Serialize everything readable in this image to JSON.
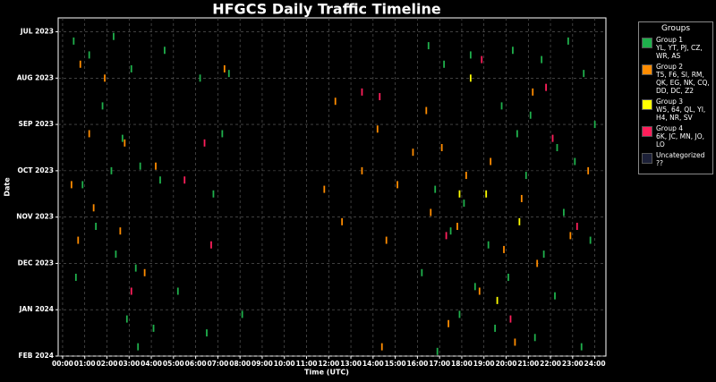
{
  "chart_data": {
    "type": "timeline",
    "title": "HFGCS Daily Traffic Timeline",
    "x_label": "Time (UTC)",
    "y_label": "Date",
    "xlim": [
      -0.2,
      24.5
    ],
    "xticks": [
      {
        "value": 0,
        "label": "00:00"
      },
      {
        "value": 1,
        "label": "01:00"
      },
      {
        "value": 2,
        "label": "02:00"
      },
      {
        "value": 3,
        "label": "03:00"
      },
      {
        "value": 4,
        "label": "04:00"
      },
      {
        "value": 5,
        "label": "05:00"
      },
      {
        "value": 6,
        "label": "06:00"
      },
      {
        "value": 7,
        "label": "07:00"
      },
      {
        "value": 8,
        "label": "08:00"
      },
      {
        "value": 9,
        "label": "09:00"
      },
      {
        "value": 10,
        "label": "10:00"
      },
      {
        "value": 11,
        "label": "11:00"
      },
      {
        "value": 12,
        "label": "12:00"
      },
      {
        "value": 13,
        "label": "13:00"
      },
      {
        "value": 14,
        "label": "14:00"
      },
      {
        "value": 15,
        "label": "15:00"
      },
      {
        "value": 16,
        "label": "16:00"
      },
      {
        "value": 17,
        "label": "17:00"
      },
      {
        "value": 18,
        "label": "18:00"
      },
      {
        "value": 19,
        "label": "19:00"
      },
      {
        "value": 20,
        "label": "20:00"
      },
      {
        "value": 21,
        "label": "21:00"
      },
      {
        "value": 22,
        "label": "22:00"
      },
      {
        "value": 23,
        "label": "23:00"
      },
      {
        "value": 24,
        "label": "24:00"
      }
    ],
    "ylim": [
      -0.3,
      7
    ],
    "yticks": [
      {
        "value": 0,
        "label": "JUL 2023"
      },
      {
        "value": 1,
        "label": "AUG 2023"
      },
      {
        "value": 2,
        "label": "SEP 2023"
      },
      {
        "value": 3,
        "label": "OCT 2023"
      },
      {
        "value": 4,
        "label": "NOV 2023"
      },
      {
        "value": 5,
        "label": "DEC 2023"
      },
      {
        "value": 6,
        "label": "JAN 2024"
      },
      {
        "value": 7,
        "label": "FEB 2024"
      }
    ],
    "y_reversed": true,
    "grid": true,
    "legend_title": "Groups",
    "legend_position": "outside-right",
    "series": [
      {
        "name": "Group 1",
        "members": "YL, YT, PJ, CZ, WR, AS",
        "color": "#1fb04c",
        "x": [
          0.5,
          1.2,
          2.3,
          3.1,
          4.6,
          6.2,
          7.5,
          1.8,
          2.7,
          3.5,
          0.9,
          2.2,
          4.4,
          6.8,
          7.2,
          1.5,
          2.4,
          0.6,
          3.3,
          5.2,
          2.9,
          4.1,
          6.5,
          3.4,
          8.1,
          16.5,
          17.2,
          18.4,
          20.3,
          21.6,
          22.8,
          23.5,
          19.8,
          21.1,
          20.5,
          22.3,
          23.1,
          20.9,
          16.8,
          18.1,
          22.6,
          17.5,
          19.2,
          21.7,
          23.8,
          16.2,
          18.6,
          20.1,
          22.2,
          17.9,
          19.5,
          21.3,
          23.4,
          16.9,
          24.0
        ],
        "y": [
          0.2,
          0.5,
          0.1,
          0.8,
          0.4,
          1.0,
          0.9,
          1.6,
          2.3,
          2.9,
          3.3,
          3.0,
          3.2,
          3.5,
          2.2,
          4.2,
          4.8,
          5.3,
          5.1,
          5.6,
          6.2,
          6.4,
          6.5,
          6.8,
          6.1,
          0.3,
          0.7,
          0.5,
          0.4,
          0.6,
          0.2,
          0.9,
          1.6,
          1.8,
          2.2,
          2.5,
          2.8,
          3.1,
          3.4,
          3.7,
          3.9,
          4.3,
          4.6,
          4.8,
          4.5,
          5.2,
          5.5,
          5.3,
          5.7,
          6.1,
          6.4,
          6.6,
          6.8,
          6.9,
          2.0
        ]
      },
      {
        "name": "Group 2",
        "members": "T5, F6, SI, RM, QK, EG, NK, CQ, DD, DC, Z2",
        "color": "#ff8c00",
        "x": [
          0.8,
          1.9,
          7.3,
          1.2,
          2.8,
          0.4,
          1.4,
          4.2,
          0.7,
          2.6,
          3.7,
          12.3,
          14.2,
          13.5,
          15.1,
          11.8,
          12.6,
          14.6,
          16.4,
          17.1,
          18.2,
          19.3,
          20.7,
          16.6,
          17.8,
          19.9,
          21.4,
          22.9,
          18.8,
          17.4,
          20.4,
          14.4,
          23.7,
          15.8,
          21.2
        ],
        "y": [
          0.7,
          1.0,
          0.8,
          2.2,
          2.4,
          3.3,
          3.8,
          2.9,
          4.5,
          4.3,
          5.2,
          1.5,
          2.1,
          3.0,
          3.3,
          3.4,
          4.1,
          4.5,
          1.7,
          2.5,
          3.1,
          2.8,
          3.6,
          3.9,
          4.2,
          4.7,
          5.0,
          4.4,
          5.6,
          6.3,
          6.7,
          6.8,
          3.0,
          2.6,
          1.3
        ]
      },
      {
        "name": "Group 3",
        "members": "W5, 64, QL, YI, H4, NR, SV",
        "color": "#ffff00",
        "x": [
          17.9,
          19.1,
          18.4,
          20.6,
          19.6
        ],
        "y": [
          3.5,
          3.5,
          1.0,
          4.1,
          5.8
        ]
      },
      {
        "name": "Group 4",
        "members": "6K, JC, MN, JO, LO",
        "color": "#ff1f5b",
        "x": [
          5.5,
          6.4,
          13.5,
          14.3,
          18.9,
          21.8,
          6.7,
          17.3,
          22.1,
          23.2,
          3.1,
          20.2
        ],
        "y": [
          3.2,
          2.4,
          1.3,
          1.4,
          0.6,
          1.2,
          4.6,
          4.4,
          2.3,
          4.2,
          5.6,
          6.2
        ]
      },
      {
        "name": "Uncategorized",
        "members": "??",
        "color": "#1c2038",
        "x": [],
        "y": []
      }
    ]
  }
}
